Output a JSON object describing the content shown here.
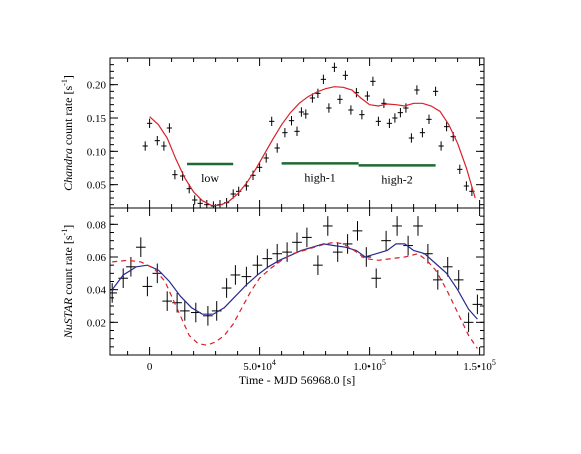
{
  "colors": {
    "axis": "#000000",
    "data_points": "#000000",
    "model_red": "#d8202a",
    "model_blue": "#2a2a8c",
    "segment_green": "#1e6a32"
  },
  "chart_data": [
    {
      "id": "chandra-panel",
      "type": "scatter",
      "ylabel": {
        "prefix": "",
        "italic": "Chandra",
        "suffix": " count rate [s",
        "sup": "-1",
        "end": "]"
      },
      "xlim": [
        -18000,
        152000
      ],
      "ylim": [
        0.015,
        0.24
      ],
      "yticks": [
        0.05,
        0.1,
        0.15,
        0.2
      ],
      "ytick_labels": [
        "0.05",
        "0.10",
        "0.15",
        "0.20"
      ],
      "ytick_minor": 0.01,
      "xtick_minor": 10000,
      "series": [
        {
          "kind": "errorbar",
          "points": [
            [
              -2000,
              0.108
            ],
            [
              0,
              0.142
            ],
            [
              3500,
              0.116
            ],
            [
              6500,
              0.108
            ],
            [
              9000,
              0.135
            ],
            [
              11500,
              0.065
            ],
            [
              15000,
              0.063
            ],
            [
              18000,
              0.044
            ],
            [
              20500,
              0.027
            ],
            [
              23000,
              0.022
            ],
            [
              26000,
              0.02
            ],
            [
              29000,
              0.018
            ],
            [
              32000,
              0.02
            ],
            [
              35000,
              0.023
            ],
            [
              38000,
              0.036
            ],
            [
              40500,
              0.04
            ],
            [
              44000,
              0.048
            ],
            [
              47000,
              0.064
            ],
            [
              50000,
              0.076
            ],
            [
              53000,
              0.09
            ],
            [
              55500,
              0.145
            ],
            [
              58000,
              0.105
            ],
            [
              61500,
              0.128
            ],
            [
              64500,
              0.146
            ],
            [
              67000,
              0.13
            ],
            [
              69000,
              0.159
            ],
            [
              71000,
              0.156
            ],
            [
              74000,
              0.18
            ],
            [
              76500,
              0.187
            ],
            [
              79000,
              0.208
            ],
            [
              81500,
              0.165
            ],
            [
              84000,
              0.226
            ],
            [
              86500,
              0.178
            ],
            [
              89000,
              0.214
            ],
            [
              91500,
              0.162
            ],
            [
              94000,
              0.188
            ],
            [
              96500,
              0.155
            ],
            [
              99000,
              0.183
            ],
            [
              101500,
              0.205
            ],
            [
              104000,
              0.145
            ],
            [
              106500,
              0.172
            ],
            [
              109000,
              0.142
            ],
            [
              111500,
              0.15
            ],
            [
              114000,
              0.158
            ],
            [
              116500,
              0.165
            ],
            [
              119000,
              0.12
            ],
            [
              121500,
              0.192
            ],
            [
              124000,
              0.128
            ],
            [
              127000,
              0.148
            ],
            [
              130000,
              0.19
            ],
            [
              132500,
              0.108
            ],
            [
              135000,
              0.137
            ],
            [
              138000,
              0.122
            ],
            [
              141000,
              0.073
            ],
            [
              144000,
              0.048
            ],
            [
              146500,
              0.04
            ]
          ],
          "xerr": 1200,
          "yerr": 0.007
        },
        {
          "kind": "line",
          "color_key": "model_red",
          "dash": false,
          "points": [
            [
              0,
              0.152
            ],
            [
              4000,
              0.14
            ],
            [
              8000,
              0.12
            ],
            [
              12000,
              0.088
            ],
            [
              16000,
              0.06
            ],
            [
              20000,
              0.039
            ],
            [
              24000,
              0.026
            ],
            [
              28000,
              0.019
            ],
            [
              32000,
              0.019
            ],
            [
              36000,
              0.025
            ],
            [
              40000,
              0.036
            ],
            [
              44000,
              0.052
            ],
            [
              48000,
              0.072
            ],
            [
              52000,
              0.095
            ],
            [
              56000,
              0.118
            ],
            [
              60000,
              0.14
            ],
            [
              64000,
              0.158
            ],
            [
              68000,
              0.172
            ],
            [
              72000,
              0.182
            ],
            [
              76000,
              0.189
            ],
            [
              80000,
              0.194
            ],
            [
              84000,
              0.197
            ],
            [
              88000,
              0.196
            ],
            [
              92000,
              0.192
            ],
            [
              96000,
              0.18
            ],
            [
              100000,
              0.17
            ],
            [
              104000,
              0.168
            ],
            [
              108000,
              0.171
            ],
            [
              112000,
              0.17
            ],
            [
              116000,
              0.168
            ],
            [
              120000,
              0.172
            ],
            [
              124000,
              0.172
            ],
            [
              128000,
              0.168
            ],
            [
              132000,
              0.16
            ],
            [
              136000,
              0.14
            ],
            [
              140000,
              0.112
            ],
            [
              144000,
              0.075
            ],
            [
              148000,
              0.03
            ]
          ]
        }
      ],
      "segments": [
        {
          "x0": 17000,
          "x1": 38000,
          "y": 0.081,
          "label": "low"
        },
        {
          "x0": 60000,
          "x1": 95000,
          "y": 0.082,
          "label": "high-1"
        },
        {
          "x0": 95000,
          "x1": 130000,
          "y": 0.079,
          "label": "high-2"
        }
      ]
    },
    {
      "id": "nustar-panel",
      "type": "scatter",
      "ylabel": {
        "prefix": "",
        "italic": "NuSTAR",
        "suffix": " count rate [s",
        "sup": "-1",
        "end": "]"
      },
      "xlabel": "Time - MJD 56968.0 [s]",
      "xlim": [
        -18000,
        152000
      ],
      "ylim": [
        0.0,
        0.09
      ],
      "yticks": [
        0.02,
        0.04,
        0.06,
        0.08
      ],
      "ytick_labels": [
        "0.02",
        "0.04",
        "0.06",
        "0.08"
      ],
      "ytick_minor": 0.005,
      "xticks": [
        0,
        50000,
        100000,
        150000
      ],
      "xtick_labels": [
        "0",
        "5.0•10",
        "1.0•10",
        "1.5•10"
      ],
      "xtick_sups": [
        "",
        "4",
        "5",
        "5"
      ],
      "xtick_minor": 10000,
      "series": [
        {
          "kind": "errorbar",
          "points": [
            [
              -17000,
              0.038
            ],
            [
              -12000,
              0.047
            ],
            [
              -8500,
              0.054
            ],
            [
              -4000,
              0.066
            ],
            [
              -1000,
              0.042
            ],
            [
              3500,
              0.05
            ],
            [
              8000,
              0.033
            ],
            [
              12500,
              0.032
            ],
            [
              16000,
              0.027
            ],
            [
              21000,
              0.026
            ],
            [
              26500,
              0.024
            ],
            [
              30500,
              0.027
            ],
            [
              35000,
              0.041
            ],
            [
              39000,
              0.049
            ],
            [
              44000,
              0.048
            ],
            [
              49000,
              0.055
            ],
            [
              53500,
              0.059
            ],
            [
              58000,
              0.062
            ],
            [
              62500,
              0.063
            ],
            [
              67000,
              0.069
            ],
            [
              71500,
              0.072
            ],
            [
              76500,
              0.055
            ],
            [
              81000,
              0.079
            ],
            [
              85500,
              0.063
            ],
            [
              90000,
              0.068
            ],
            [
              94500,
              0.076
            ],
            [
              98500,
              0.06
            ],
            [
              103000,
              0.047
            ],
            [
              107500,
              0.07
            ],
            [
              112500,
              0.079
            ],
            [
              117500,
              0.067
            ],
            [
              122000,
              0.079
            ],
            [
              126500,
              0.062
            ],
            [
              131000,
              0.046
            ],
            [
              135500,
              0.054
            ],
            [
              140500,
              0.046
            ],
            [
              145000,
              0.02
            ],
            [
              149000,
              0.031
            ]
          ],
          "xerr": 2200,
          "yerr": 0.006
        },
        {
          "kind": "line",
          "color_key": "model_blue",
          "dash": false,
          "points": [
            [
              -17000,
              0.04
            ],
            [
              -12000,
              0.049
            ],
            [
              -6000,
              0.054
            ],
            [
              -1000,
              0.055
            ],
            [
              4000,
              0.052
            ],
            [
              9000,
              0.045
            ],
            [
              14000,
              0.036
            ],
            [
              19000,
              0.029
            ],
            [
              24000,
              0.025
            ],
            [
              29000,
              0.025
            ],
            [
              34000,
              0.029
            ],
            [
              39000,
              0.036
            ],
            [
              44000,
              0.043
            ],
            [
              49000,
              0.049
            ],
            [
              54000,
              0.054
            ],
            [
              59000,
              0.058
            ],
            [
              64000,
              0.061
            ],
            [
              69000,
              0.064
            ],
            [
              74000,
              0.066
            ],
            [
              79000,
              0.068
            ],
            [
              84000,
              0.067
            ],
            [
              89000,
              0.066
            ],
            [
              94000,
              0.064
            ],
            [
              98000,
              0.06
            ],
            [
              103000,
              0.062
            ],
            [
              108000,
              0.064
            ],
            [
              112000,
              0.068
            ],
            [
              116000,
              0.068
            ],
            [
              120000,
              0.064
            ],
            [
              125000,
              0.062
            ],
            [
              130000,
              0.056
            ],
            [
              135000,
              0.05
            ],
            [
              140000,
              0.04
            ],
            [
              145000,
              0.028
            ],
            [
              149000,
              0.022
            ]
          ]
        },
        {
          "kind": "line",
          "color_key": "model_red",
          "dash": true,
          "points": [
            [
              -17000,
              0.057
            ],
            [
              -10000,
              0.058
            ],
            [
              -4000,
              0.057
            ],
            [
              2000,
              0.053
            ],
            [
              7000,
              0.045
            ],
            [
              11000,
              0.033
            ],
            [
              15000,
              0.021
            ],
            [
              18000,
              0.012
            ],
            [
              22000,
              0.007
            ],
            [
              26000,
              0.006
            ],
            [
              30000,
              0.008
            ],
            [
              34000,
              0.012
            ],
            [
              38000,
              0.019
            ],
            [
              42000,
              0.029
            ],
            [
              46000,
              0.039
            ],
            [
              50000,
              0.047
            ],
            [
              55000,
              0.053
            ],
            [
              60000,
              0.058
            ],
            [
              65000,
              0.062
            ],
            [
              70000,
              0.064
            ],
            [
              75000,
              0.066
            ],
            [
              80000,
              0.068
            ],
            [
              84000,
              0.069
            ],
            [
              88000,
              0.068
            ],
            [
              93000,
              0.064
            ],
            [
              98000,
              0.059
            ],
            [
              104000,
              0.058
            ],
            [
              110000,
              0.059
            ],
            [
              116000,
              0.06
            ],
            [
              122000,
              0.062
            ],
            [
              126000,
              0.058
            ],
            [
              130000,
              0.052
            ],
            [
              135000,
              0.04
            ],
            [
              140000,
              0.026
            ],
            [
              145000,
              0.012
            ],
            [
              149000,
              0.004
            ]
          ]
        }
      ]
    }
  ]
}
